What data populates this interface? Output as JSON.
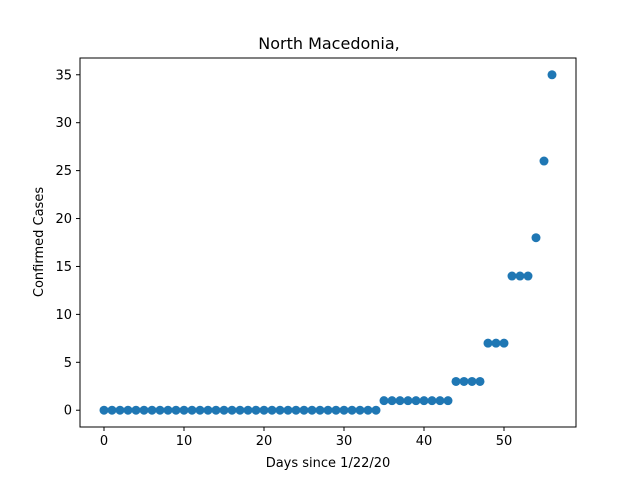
{
  "chart_data": {
    "type": "scatter",
    "title": "North Macedonia,",
    "xlabel": "Days since 1/22/20",
    "ylabel": "Confirmed Cases",
    "xlim": [
      -3.0,
      59.0
    ],
    "ylim": [
      -1.75,
      36.75
    ],
    "xticks": [
      0,
      10,
      20,
      30,
      40,
      50
    ],
    "yticks": [
      0,
      5,
      10,
      15,
      20,
      25,
      30,
      35
    ],
    "grid": false,
    "marker_color": "#1f77b4",
    "x": [
      0,
      1,
      2,
      3,
      4,
      5,
      6,
      7,
      8,
      9,
      10,
      11,
      12,
      13,
      14,
      15,
      16,
      17,
      18,
      19,
      20,
      21,
      22,
      23,
      24,
      25,
      26,
      27,
      28,
      29,
      30,
      31,
      32,
      33,
      34,
      35,
      36,
      37,
      38,
      39,
      40,
      41,
      42,
      43,
      44,
      45,
      46,
      47,
      48,
      49,
      50,
      51,
      52,
      53,
      54,
      55,
      56
    ],
    "y": [
      0,
      0,
      0,
      0,
      0,
      0,
      0,
      0,
      0,
      0,
      0,
      0,
      0,
      0,
      0,
      0,
      0,
      0,
      0,
      0,
      0,
      0,
      0,
      0,
      0,
      0,
      0,
      0,
      0,
      0,
      0,
      0,
      0,
      0,
      0,
      1,
      1,
      1,
      1,
      1,
      1,
      1,
      1,
      1,
      3,
      3,
      3,
      3,
      7,
      7,
      7,
      14,
      14,
      14,
      18,
      26,
      35
    ]
  }
}
